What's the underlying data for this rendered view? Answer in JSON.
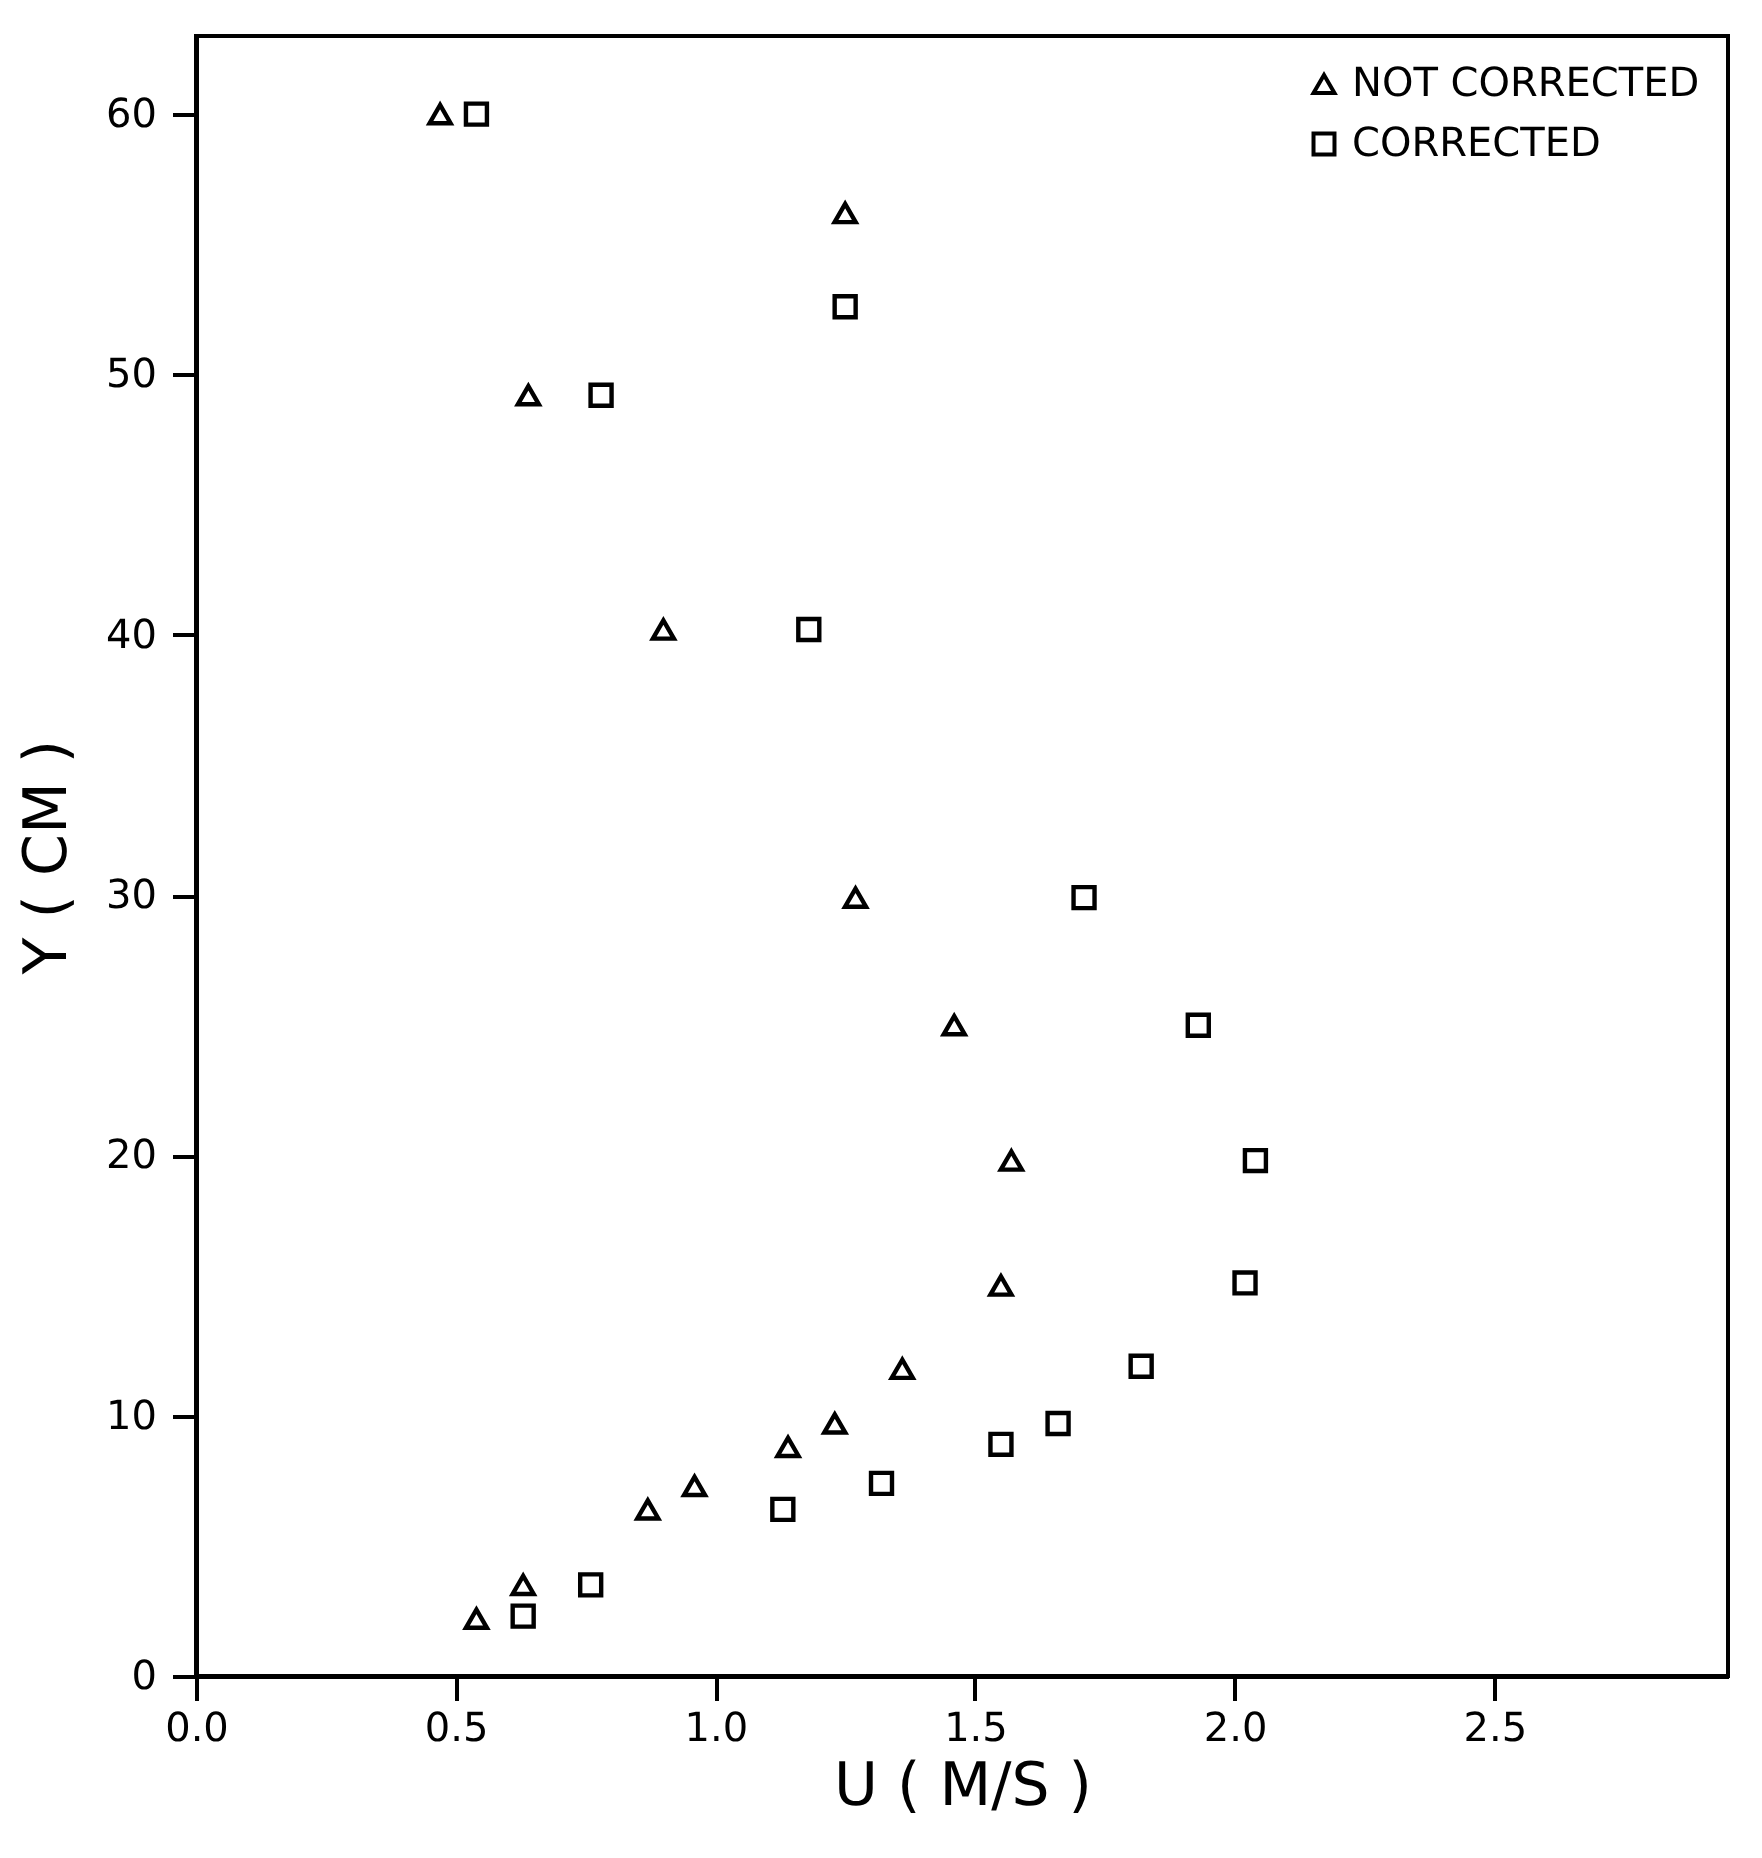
{
  "chart_data": {
    "type": "scatter",
    "xlabel": "U  ( M/S )",
    "ylabel": "Y  ( CM )",
    "legend": "top right",
    "grid": false,
    "xlim": [
      0,
      2.95
    ],
    "xticks": [
      {
        "value": 0,
        "label": "0.0"
      },
      0.5,
      {
        "value": 1,
        "label": "1.0"
      },
      1.5,
      {
        "value": 2,
        "label": "2.0"
      },
      2.5
    ],
    "ylim": [
      0,
      63
    ],
    "yticks": [
      0,
      10,
      20,
      30,
      40,
      50,
      60
    ],
    "series": [
      {
        "name": "NOT CORRECTED",
        "color": "#000000",
        "marker": "triangle",
        "x": [
          0.47,
          0.64,
          0.9,
          1.25,
          1.27,
          1.46,
          1.57,
          1.55,
          1.36,
          1.23,
          1.14,
          0.96,
          0.87,
          0.63,
          0.54
        ],
        "values": [
          60,
          49.2,
          40.2,
          56.2,
          29.9,
          25.0,
          19.8,
          15.0,
          11.8,
          9.7,
          8.8,
          7.3,
          6.4,
          3.5,
          2.2
        ]
      },
      {
        "name": "CORRECTED",
        "color": "#000000",
        "marker": "square",
        "x": [
          0.54,
          0.78,
          1.25,
          1.18,
          1.71,
          1.93,
          2.04,
          2.02,
          1.82,
          1.66,
          1.55,
          1.32,
          1.13,
          0.76,
          0.63
        ],
        "values": [
          60,
          49.2,
          52.6,
          40.2,
          29.9,
          25.0,
          19.8,
          15.1,
          11.9,
          9.7,
          8.9,
          7.4,
          6.4,
          3.5,
          2.3
        ]
      }
    ]
  }
}
